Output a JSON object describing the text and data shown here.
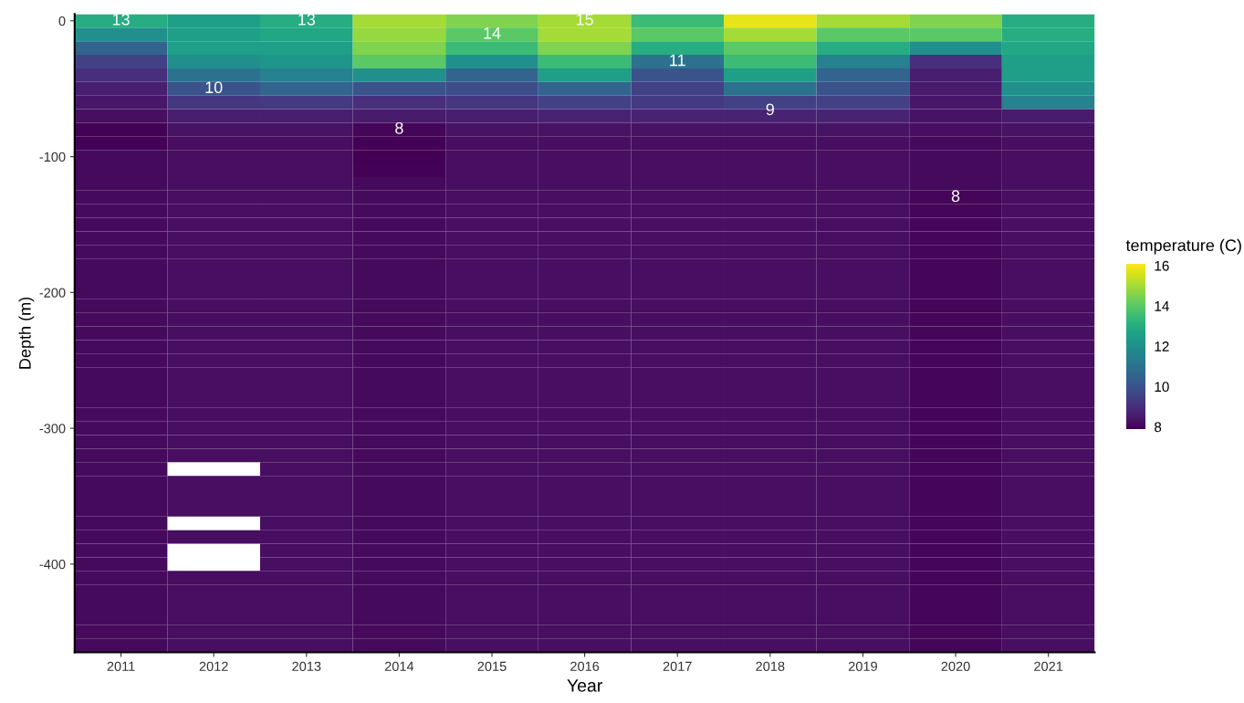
{
  "chart_data": {
    "type": "heatmap",
    "xlabel": "Year",
    "ylabel": "Depth (m)",
    "clabel": "temperature (C)",
    "categories": [
      "2011",
      "2012",
      "2013",
      "2014",
      "2015",
      "2016",
      "2017",
      "2018",
      "2019",
      "2020",
      "2021"
    ],
    "y_categories": [
      "0",
      null,
      null,
      null,
      null,
      null,
      null,
      null,
      null,
      null,
      "-100",
      null,
      null,
      null,
      null,
      null,
      null,
      null,
      null,
      null,
      "-200",
      null,
      null,
      null,
      null,
      null,
      null,
      null,
      null,
      null,
      "-300",
      null,
      null,
      null,
      null,
      null,
      null,
      null,
      null,
      null,
      "-400",
      null,
      null,
      null,
      null,
      null,
      null
    ],
    "clim": [
      7.9,
      16.1
    ],
    "cticks": [
      8,
      10,
      12,
      14,
      16
    ],
    "cells": [
      [
        13,
        12.5,
        13,
        15,
        14.5,
        15,
        13.5,
        15.8,
        15,
        14.5,
        13
      ],
      [
        12,
        12.5,
        12.8,
        14.8,
        14,
        15,
        14,
        15,
        14,
        14,
        13
      ],
      [
        10.5,
        12.5,
        12.5,
        14.5,
        13.5,
        14.5,
        13,
        14,
        13,
        12,
        12.8
      ],
      [
        9.5,
        12,
        12.2,
        14,
        12,
        13.5,
        11,
        13.5,
        11.5,
        9,
        12.5
      ],
      [
        9,
        11,
        11.5,
        12,
        10.5,
        12.5,
        10,
        12.5,
        10.5,
        8.6,
        12.5
      ],
      [
        8.6,
        10,
        10.5,
        10,
        9.8,
        10.5,
        9.5,
        11,
        10,
        8.5,
        12
      ],
      [
        8.4,
        9.2,
        9.3,
        9,
        9.2,
        9.5,
        9.3,
        9.5,
        9.5,
        8.4,
        11.5
      ],
      [
        8.2,
        8.6,
        8.6,
        8.5,
        8.6,
        8.7,
        8.7,
        8.7,
        8.7,
        8.3,
        8.5
      ],
      [
        7.95,
        8.3,
        8.3,
        8,
        8.3,
        8.3,
        8.3,
        8.3,
        8.3,
        8.2,
        8.3
      ],
      [
        7.95,
        8.2,
        8.2,
        7.95,
        8.2,
        8.2,
        8.2,
        8.2,
        8.2,
        8.1,
        8.2
      ],
      [
        8.1,
        8.2,
        8.2,
        7.9,
        8.2,
        8.2,
        8.2,
        8.2,
        8.2,
        8.1,
        8.2
      ],
      [
        8.1,
        8.2,
        8.2,
        7.95,
        8.2,
        8.2,
        8.2,
        8.2,
        8.2,
        8.1,
        8.2
      ],
      [
        8.1,
        8.2,
        8.2,
        8.1,
        8.2,
        8.2,
        8.2,
        8.2,
        8.2,
        8.1,
        8.2
      ],
      [
        8.1,
        8.2,
        8.2,
        8.1,
        8.2,
        8.2,
        8.2,
        8.2,
        8.2,
        8.0,
        8.2
      ],
      [
        8.1,
        8.2,
        8.2,
        8.1,
        8.2,
        8.2,
        8.2,
        8.2,
        8.2,
        8.0,
        8.2
      ],
      [
        8.1,
        8.2,
        8.2,
        8.1,
        8.2,
        8.2,
        8.2,
        8.2,
        8.2,
        8.0,
        8.2
      ],
      [
        8.1,
        8.2,
        8.2,
        8.1,
        8.2,
        8.2,
        8.2,
        8.2,
        8.2,
        8.0,
        8.2
      ],
      [
        8.1,
        8.2,
        8.2,
        8.1,
        8.2,
        8.2,
        8.2,
        8.2,
        8.2,
        8.0,
        8.2
      ],
      [
        8.1,
        8.2,
        8.2,
        8.1,
        8.2,
        8.2,
        8.2,
        8.2,
        8.2,
        8.0,
        8.2
      ],
      [
        8.1,
        8.2,
        8.2,
        8.1,
        8.2,
        8.2,
        8.2,
        8.2,
        8.2,
        8.0,
        8.2
      ],
      [
        8.1,
        8.2,
        8.2,
        8.1,
        8.2,
        8.2,
        8.2,
        8.2,
        8.2,
        8.0,
        8.2
      ],
      [
        8.1,
        8.2,
        8.2,
        8.1,
        8.2,
        8.2,
        8.2,
        8.2,
        8.2,
        8.0,
        8.2
      ],
      [
        8.1,
        8.2,
        8.2,
        8.1,
        8.2,
        8.2,
        8.2,
        8.2,
        8.2,
        8.0,
        8.2
      ],
      [
        8.1,
        8.2,
        8.2,
        8.1,
        8.2,
        8.2,
        8.2,
        8.2,
        8.2,
        8.0,
        8.2
      ],
      [
        8.1,
        8.2,
        8.2,
        8.1,
        8.2,
        8.2,
        8.2,
        8.2,
        8.2,
        8.0,
        8.2
      ],
      [
        8.1,
        8.2,
        8.2,
        8.1,
        8.2,
        8.2,
        8.2,
        8.2,
        8.2,
        8.0,
        8.2
      ],
      [
        8.1,
        8.2,
        8.2,
        8.1,
        8.2,
        8.2,
        8.2,
        8.2,
        8.2,
        8.0,
        8.2
      ],
      [
        8.1,
        8.2,
        8.2,
        8.1,
        8.2,
        8.2,
        8.2,
        8.2,
        8.2,
        8.0,
        8.2
      ],
      [
        8.1,
        8.2,
        8.2,
        8.1,
        8.2,
        8.2,
        8.2,
        8.2,
        8.2,
        8.0,
        8.2
      ],
      [
        8.1,
        8.2,
        8.2,
        8.1,
        8.2,
        8.2,
        8.2,
        8.2,
        8.2,
        8.0,
        8.2
      ],
      [
        8.1,
        8.2,
        8.2,
        8.1,
        8.2,
        8.2,
        8.2,
        8.2,
        8.2,
        8.0,
        8.2
      ],
      [
        8.1,
        8.2,
        8.2,
        8.1,
        8.2,
        8.2,
        8.2,
        8.2,
        8.2,
        8.0,
        8.2
      ],
      [
        8.1,
        8.2,
        8.2,
        8.1,
        8.2,
        8.2,
        8.2,
        8.2,
        8.2,
        8.0,
        8.2
      ],
      [
        8.1,
        null,
        8.2,
        8.1,
        8.2,
        8.2,
        8.2,
        8.2,
        8.2,
        8.0,
        8.2
      ],
      [
        8.1,
        8.2,
        8.2,
        8.1,
        8.2,
        8.2,
        8.2,
        8.2,
        8.2,
        8.0,
        8.2
      ],
      [
        8.1,
        8.2,
        8.2,
        8.1,
        8.2,
        8.2,
        8.2,
        8.2,
        8.2,
        8.0,
        8.2
      ],
      [
        8.1,
        8.2,
        8.2,
        8.1,
        8.2,
        8.2,
        8.2,
        8.2,
        8.2,
        8.0,
        8.2
      ],
      [
        8.1,
        null,
        8.2,
        8.1,
        8.2,
        8.2,
        8.2,
        8.2,
        8.2,
        8.0,
        8.2
      ],
      [
        8.1,
        8.2,
        8.2,
        8.1,
        8.2,
        8.2,
        8.2,
        8.2,
        8.2,
        8.0,
        8.2
      ],
      [
        8.1,
        null,
        8.2,
        8.1,
        8.2,
        8.2,
        8.2,
        8.2,
        8.2,
        8.0,
        8.2
      ],
      [
        8.1,
        null,
        8.2,
        8.1,
        8.2,
        8.2,
        8.2,
        8.2,
        8.2,
        8.0,
        8.2
      ],
      [
        8.1,
        8.2,
        8.2,
        8.1,
        8.2,
        8.2,
        8.2,
        8.2,
        8.2,
        8.0,
        8.2
      ],
      [
        8.1,
        8.2,
        8.2,
        8.1,
        8.2,
        8.2,
        8.2,
        8.2,
        8.2,
        8.0,
        8.2
      ],
      [
        8.1,
        8.2,
        8.2,
        8.1,
        8.2,
        8.2,
        8.2,
        8.2,
        8.2,
        8.0,
        8.2
      ],
      [
        8.1,
        8.2,
        8.2,
        8.1,
        8.2,
        8.2,
        8.2,
        8.2,
        8.2,
        8.0,
        8.2
      ],
      [
        8.1,
        8.2,
        8.2,
        8.1,
        8.2,
        8.2,
        8.2,
        8.2,
        8.2,
        8.0,
        8.2
      ],
      [
        8.1,
        8.2,
        8.2,
        8.1,
        8.2,
        8.2,
        8.2,
        8.2,
        8.2,
        8.0,
        8.2
      ]
    ],
    "annotations": [
      "13",
      "10",
      "8",
      "8",
      "14",
      "15",
      "13",
      "11",
      "9"
    ]
  }
}
